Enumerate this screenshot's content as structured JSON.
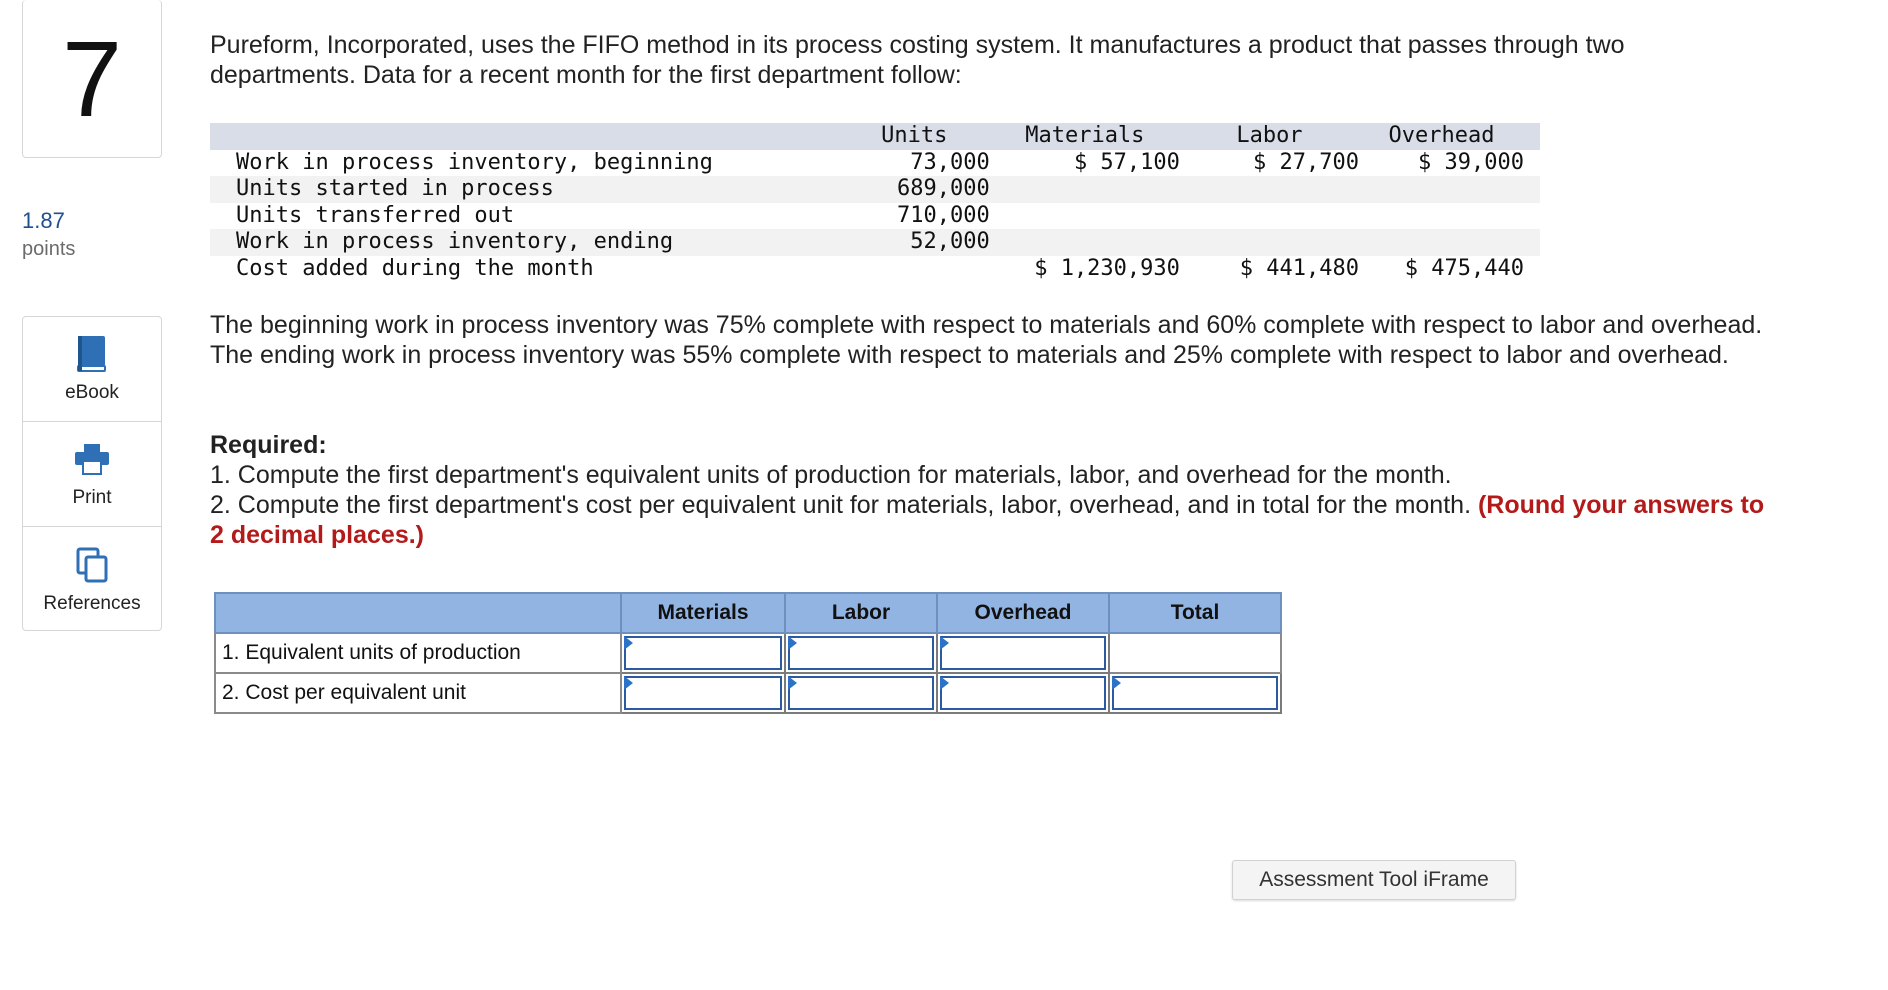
{
  "question": {
    "number": "7",
    "points_value": "1.87",
    "points_label": "points"
  },
  "tools": [
    {
      "label": "eBook",
      "icon": "book-icon"
    },
    {
      "label": "Print",
      "icon": "printer-icon"
    },
    {
      "label": "References",
      "icon": "copy-icon"
    }
  ],
  "intro": "Pureform, Incorporated, uses the FIFO method in its process costing system. It manufactures a product that passes through two departments. Data for a recent month for the first department follow:",
  "data_table": {
    "headers": [
      "",
      "Units",
      "Materials",
      "Labor",
      "Overhead"
    ],
    "rows": [
      [
        "Work in process inventory, beginning",
        "73,000",
        "$ 57,100",
        "$ 27,700",
        "$ 39,000"
      ],
      [
        "Units started in process",
        "689,000",
        "",
        "",
        ""
      ],
      [
        "Units transferred out",
        "710,000",
        "",
        "",
        ""
      ],
      [
        "Work in process inventory, ending",
        "52,000",
        "",
        "",
        ""
      ],
      [
        "Cost added during the month",
        "",
        "$ 1,230,930",
        "$ 441,480",
        "$ 475,440"
      ]
    ]
  },
  "completion_text": "The beginning work in process inventory was 75% complete with respect to materials and 60% complete with respect to labor and overhead. The ending work in process inventory was 55% complete with respect to materials and 25% complete with respect to labor and overhead.",
  "required": {
    "heading": "Required:",
    "item1": "1. Compute the first department's equivalent units of production for materials, labor, and overhead for the month.",
    "item2": "2. Compute the first department's cost per equivalent unit for materials, labor, overhead, and in total for the month.",
    "item2_note": "(Round your answers to 2 decimal places.)"
  },
  "answer_table": {
    "headers": [
      "",
      "Materials",
      "Labor",
      "Overhead",
      "Total"
    ],
    "rows": [
      {
        "label": "1. Equivalent units of production",
        "values": [
          "",
          "",
          "",
          ""
        ]
      },
      {
        "label": "2. Cost per equivalent unit",
        "values": [
          "",
          "",
          "",
          ""
        ]
      }
    ]
  },
  "assessment_button": "Assessment Tool iFrame"
}
